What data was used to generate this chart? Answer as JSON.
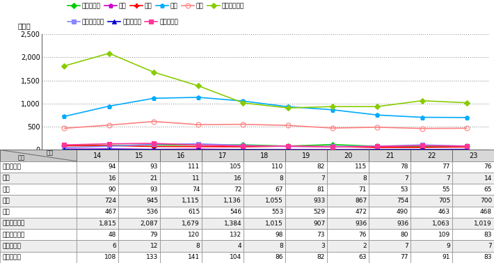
{
  "years": [
    14,
    15,
    16,
    17,
    18,
    19,
    20,
    21,
    22,
    23
  ],
  "series": [
    {
      "name": "殺人（件）",
      "values": [
        94,
        93,
        111,
        105,
        110,
        82,
        115,
        78,
        77,
        76
      ],
      "color": "#00cc00",
      "marker": "D",
      "markersize": 4,
      "linewidth": 1.2,
      "markerfacecolor": "#00cc00"
    },
    {
      "name": "強盗",
      "values": [
        16,
        21,
        11,
        16,
        8,
        7,
        8,
        7,
        7,
        14
      ],
      "color": "#cc00cc",
      "marker": "p",
      "markersize": 5,
      "linewidth": 1.2,
      "markerfacecolor": "#cc00cc"
    },
    {
      "name": "強姦",
      "values": [
        90,
        93,
        74,
        72,
        67,
        81,
        71,
        53,
        55,
        65
      ],
      "color": "#ff0000",
      "marker": "P",
      "markersize": 5,
      "linewidth": 1.2,
      "markerfacecolor": "#ff0000"
    },
    {
      "name": "暴行",
      "values": [
        724,
        945,
        1115,
        1136,
        1055,
        933,
        867,
        754,
        705,
        700
      ],
      "color": "#00aaff",
      "marker": "p",
      "markersize": 5,
      "linewidth": 1.2,
      "markerfacecolor": "#00aaff"
    },
    {
      "name": "傍害",
      "values": [
        467,
        536,
        615,
        546,
        553,
        529,
        472,
        490,
        463,
        468
      ],
      "color": "#ff8080",
      "marker": "o",
      "markersize": 5,
      "linewidth": 1.2,
      "markerfacecolor": "none"
    },
    {
      "name": "強制わいせつ",
      "values": [
        1815,
        2087,
        1679,
        1384,
        1015,
        907,
        936,
        936,
        1063,
        1019
      ],
      "color": "#88cc00",
      "marker": "D",
      "markersize": 4,
      "linewidth": 1.2,
      "markerfacecolor": "#88cc00"
    },
    {
      "name": "公然わいせつ",
      "values": [
        48,
        79,
        120,
        132,
        98,
        73,
        76,
        80,
        109,
        83
      ],
      "color": "#8888ff",
      "marker": "s",
      "markersize": 4,
      "linewidth": 1.2,
      "markerfacecolor": "#8888ff"
    },
    {
      "name": "逐捕・監禁",
      "values": [
        6,
        12,
        8,
        4,
        8,
        3,
        2,
        7,
        9,
        7
      ],
      "color": "#0000cc",
      "marker": "^",
      "markersize": 5,
      "linewidth": 1.2,
      "markerfacecolor": "#0000cc"
    },
    {
      "name": "略取・誘拐",
      "values": [
        108,
        133,
        141,
        104,
        86,
        82,
        63,
        77,
        91,
        83
      ],
      "color": "#ff3399",
      "marker": "s",
      "markersize": 4,
      "linewidth": 1.2,
      "markerfacecolor": "#ff3399"
    }
  ],
  "ylabel": "（件）",
  "ylim": [
    0,
    2500
  ],
  "yticks": [
    0,
    500,
    1000,
    1500,
    2000,
    2500
  ],
  "ytick_labels": [
    "0",
    "500",
    "1,000",
    "1,500",
    "2,000",
    "2,500"
  ],
  "table_rows": [
    [
      "殺人（件）",
      "94",
      "93",
      "111",
      "105",
      "110",
      "82",
      "115",
      "78",
      "77",
      "76"
    ],
    [
      "強盗",
      "16",
      "21",
      "11",
      "16",
      "8",
      "7",
      "8",
      "7",
      "7",
      "14"
    ],
    [
      "強姦",
      "90",
      "93",
      "74",
      "72",
      "67",
      "81",
      "71",
      "53",
      "55",
      "65"
    ],
    [
      "暴行",
      "724",
      "945",
      "1,115",
      "1,136",
      "1,055",
      "933",
      "867",
      "754",
      "705",
      "700"
    ],
    [
      "傍害",
      "467",
      "536",
      "615",
      "546",
      "553",
      "529",
      "472",
      "490",
      "463",
      "468"
    ],
    [
      "強制わいせつ",
      "1,815",
      "2,087",
      "1,679",
      "1,384",
      "1,015",
      "907",
      "936",
      "936",
      "1,063",
      "1,019"
    ],
    [
      "公然わいせつ",
      "48",
      "79",
      "120",
      "132",
      "98",
      "73",
      "76",
      "80",
      "109",
      "83"
    ],
    [
      "逐捕・監禁",
      "6",
      "12",
      "8",
      "4",
      "8",
      "3",
      "2",
      "7",
      "9",
      "7"
    ],
    [
      "略取・誘拐",
      "108",
      "133",
      "141",
      "104",
      "86",
      "82",
      "63",
      "77",
      "91",
      "83"
    ]
  ],
  "col_header": [
    "区分",
    "14",
    "15",
    "16",
    "17",
    "18",
    "19",
    "20",
    "21",
    "22",
    "23"
  ],
  "header_label_left": "区分",
  "header_label_right": "年次",
  "background_color": "#ffffff",
  "grid_color": "#999999",
  "border_color": "#666666"
}
